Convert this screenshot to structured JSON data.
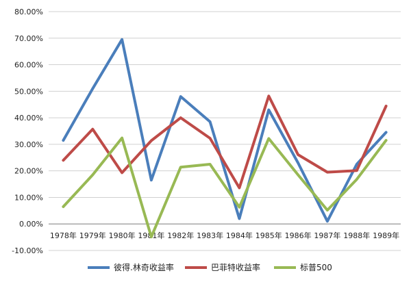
{
  "chart_data": {
    "type": "line",
    "categories": [
      "1978年",
      "1979年",
      "1980年",
      "1981年",
      "1982年",
      "1983年",
      "1984年",
      "1985年",
      "1986年",
      "1987年",
      "1988年",
      "1989年"
    ],
    "y_ticks": [
      "80.00%",
      "70.00%",
      "60.00%",
      "50.00%",
      "40.00%",
      "30.00%",
      "20.00%",
      "10.00%",
      "0.00%",
      "-10.00%"
    ],
    "ylim": [
      -10,
      80
    ],
    "grid": true,
    "legend_position": "bottom",
    "series": [
      {
        "name": "彼得.林奇收益率",
        "color": "#4a7ebb",
        "values": [
          31.5,
          51,
          69.5,
          16.5,
          48,
          38.5,
          2,
          43,
          23,
          1,
          22.5,
          34.5
        ]
      },
      {
        "name": "巴菲特收益率",
        "color": "#be4b48",
        "values": [
          24,
          35.7,
          19.3,
          31.4,
          40,
          32.3,
          13.6,
          48.2,
          26.1,
          19.5,
          20.1,
          44.4
        ]
      },
      {
        "name": "标普500",
        "color": "#98b954",
        "values": [
          6.5,
          18.5,
          32.4,
          -4.9,
          21.4,
          22.5,
          6.3,
          32.2,
          18.5,
          5.2,
          16.8,
          31.5
        ]
      }
    ]
  }
}
